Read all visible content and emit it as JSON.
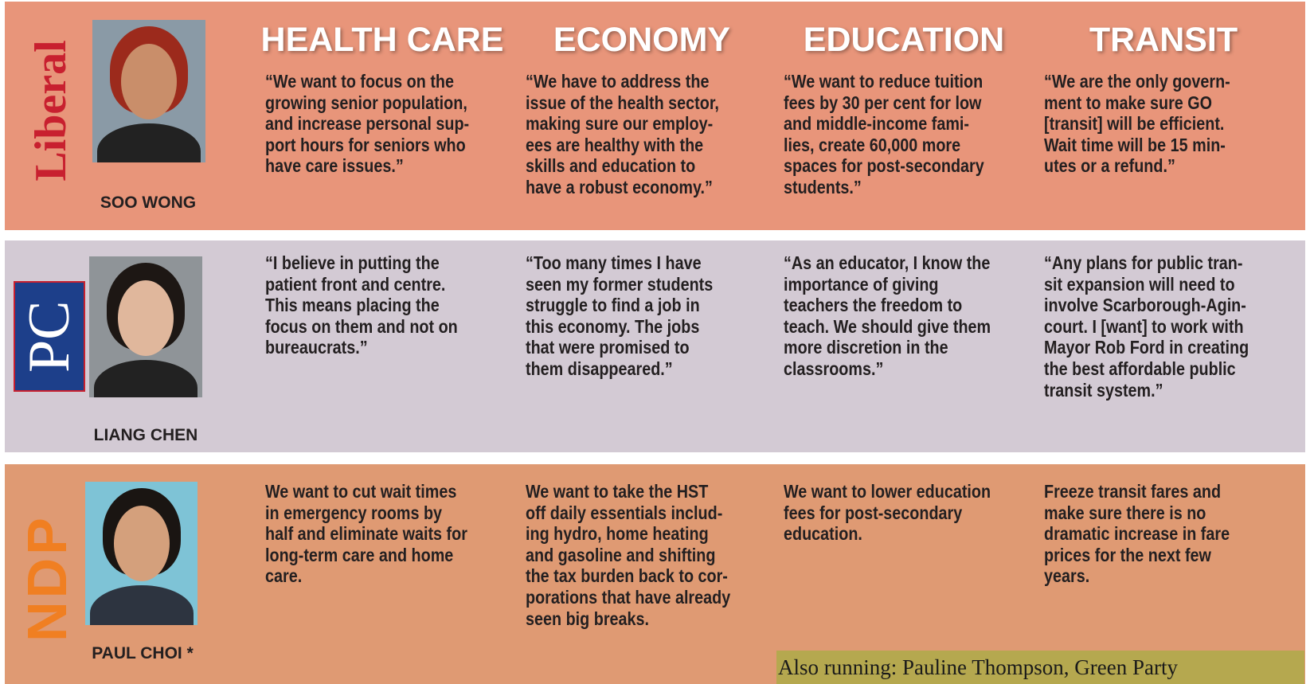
{
  "topics": [
    "HEALTH CARE",
    "ECONOMY",
    "EDUCATION",
    "TRANSIT"
  ],
  "rows": [
    {
      "party": "Liberal",
      "candidate": "SOO WONG",
      "quotes": [
        [
          "“We want to focus on the",
          "growing senior population,",
          "and increase personal sup-",
          "port hours for seniors who",
          "have care issues.”"
        ],
        [
          "“We have to address the",
          "issue of the health sector,",
          "making sure our employ-",
          "ees are healthy with the",
          "skills and education to",
          "have a robust economy.”"
        ],
        [
          "“We want to reduce tuition",
          "fees by 30 per cent for low",
          "and middle-income fami-",
          "lies, create 60,000 more",
          "spaces for post-secondary",
          "students.”"
        ],
        [
          "“We are the only govern-",
          "ment to make sure GO",
          "[transit] will be efficient.",
          "Wait time will be 15 min-",
          "utes or a refund.”"
        ]
      ]
    },
    {
      "party": "PC",
      "candidate": "LIANG CHEN",
      "quotes": [
        [
          "“I believe in putting the",
          "patient front and centre.",
          "This means placing the",
          "focus on them and not on",
          "bureaucrats.”"
        ],
        [
          "“Too many times I have",
          "seen my former students",
          "struggle to find a job in",
          "this economy. The jobs",
          "that were promised to",
          "them disappeared.”"
        ],
        [
          "“As an educator, I know the",
          "importance of giving",
          "teachers the freedom to",
          "teach. We should give them",
          "more discretion in the",
          "classrooms.”"
        ],
        [
          "“Any plans for public tran-",
          "sit expansion will need to",
          "involve Scarborough-Agin-",
          "court. I [want] to work with",
          "Mayor Rob Ford in creating",
          "the best affordable public",
          "transit system.”"
        ]
      ]
    },
    {
      "party": "NDP",
      "candidate": "PAUL CHOI *",
      "quotes": [
        [
          "We want to cut wait times",
          "in emergency rooms by",
          "half and eliminate waits for",
          "long-term care and home",
          "care."
        ],
        [
          "We want to take the HST",
          "off daily essentials includ-",
          "ing hydro, home heating",
          "and gasoline and shifting",
          "the tax burden back to cor-",
          "porations that have already",
          "seen big breaks."
        ],
        [
          "We want to lower education",
          "fees for post-secondary",
          "education."
        ],
        [
          "Freeze transit fares and",
          "make sure there is no",
          "dramatic increase in fare",
          "prices for the next few",
          "years."
        ]
      ]
    }
  ],
  "footer": "Also running: Pauline Thompson, Green Party"
}
